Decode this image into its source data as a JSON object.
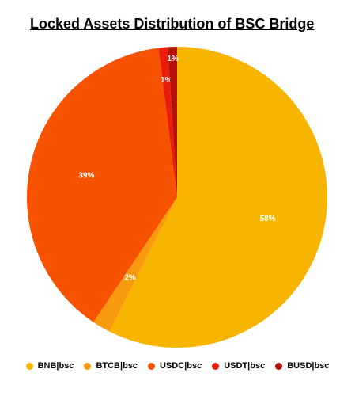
{
  "chart_data": {
    "type": "pie",
    "title": "Locked Assets Distribution of BSC Bridge",
    "slices": [
      {
        "label": "BNB|bsc",
        "value": 58,
        "display": "58%",
        "color": "#F7B500"
      },
      {
        "label": "BTCB|bsc",
        "value": 2,
        "display": "2%",
        "color": "#F79A0E"
      },
      {
        "label": "USDC|bsc",
        "value": 39,
        "display": "39%",
        "color": "#F75200"
      },
      {
        "label": "USDT|bsc",
        "value": 1,
        "display": "1%",
        "color": "#E81D0B"
      },
      {
        "label": "BUSD|bsc",
        "value": 1,
        "display": "1%",
        "color": "#B5120B"
      }
    ],
    "legend_position": "bottom"
  }
}
